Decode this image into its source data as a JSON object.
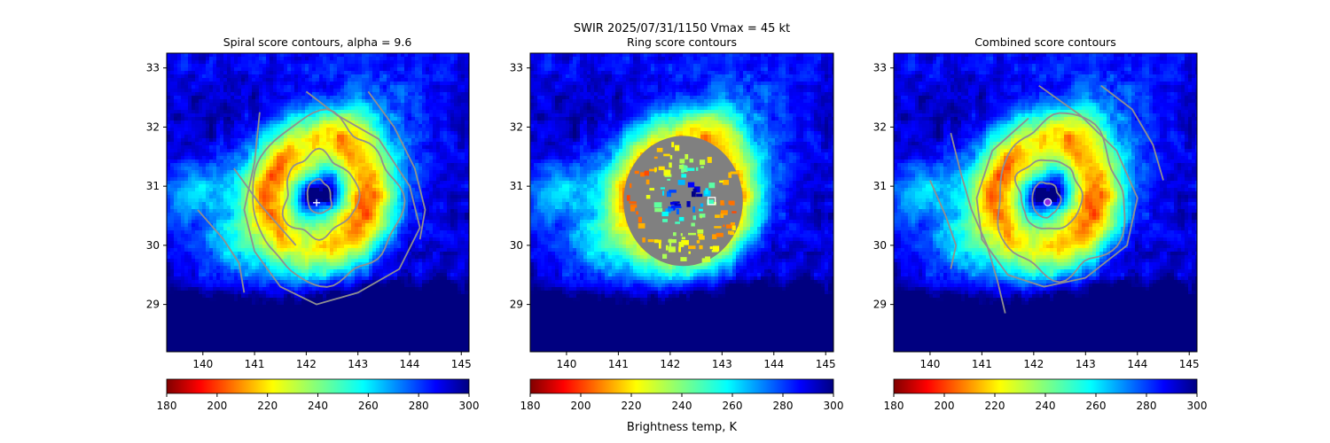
{
  "suptitle_line1": "SWIR  2025/07/31/1150    Vmax = 45 kt",
  "colorbar_label": "Brightness temp, K",
  "chart_data": [
    {
      "type": "heatmap",
      "title": "Spiral score contours, alpha =  9.6",
      "xlim": [
        139.3,
        145.15
      ],
      "ylim": [
        28.2,
        33.25
      ],
      "xticks": [
        140,
        141,
        142,
        143,
        144,
        145
      ],
      "yticks": [
        29,
        30,
        31,
        32,
        33
      ],
      "overlay": "spiral",
      "marker": {
        "shape": "plus",
        "lon": 142.2,
        "lat": 30.72,
        "color": "#ffffff"
      },
      "colormap": "jet_r",
      "colorbar": {
        "min": 180,
        "max": 300,
        "ticks": [
          180,
          200,
          220,
          240,
          260,
          280,
          300
        ]
      }
    },
    {
      "type": "heatmap",
      "title": "Ring score contours",
      "xlim": [
        139.3,
        145.15
      ],
      "ylim": [
        28.2,
        33.25
      ],
      "xticks": [
        140,
        141,
        142,
        143,
        144,
        145
      ],
      "yticks": [
        29,
        30,
        31,
        32,
        33
      ],
      "overlay": "ring",
      "marker": {
        "shape": "square",
        "lon": 142.8,
        "lat": 30.75,
        "color": "#ffffff"
      },
      "colormap": "jet_r",
      "colorbar": {
        "min": 180,
        "max": 300,
        "ticks": [
          180,
          200,
          220,
          240,
          260,
          280,
          300
        ]
      }
    },
    {
      "type": "heatmap",
      "title": "Combined score contours",
      "xlim": [
        139.3,
        145.15
      ],
      "ylim": [
        28.2,
        33.25
      ],
      "xticks": [
        140,
        141,
        142,
        143,
        144,
        145
      ],
      "yticks": [
        29,
        30,
        31,
        32,
        33
      ],
      "overlay": "combined",
      "marker": {
        "shape": "circle",
        "lon": 142.27,
        "lat": 30.73,
        "color": "#8a2be2"
      },
      "colormap": "jet_r",
      "colorbar": {
        "min": 180,
        "max": 300,
        "ticks": [
          180,
          200,
          220,
          240,
          260,
          280,
          300
        ]
      }
    }
  ],
  "colors": {
    "contour": "#909090",
    "ring_disk": "#808080"
  }
}
